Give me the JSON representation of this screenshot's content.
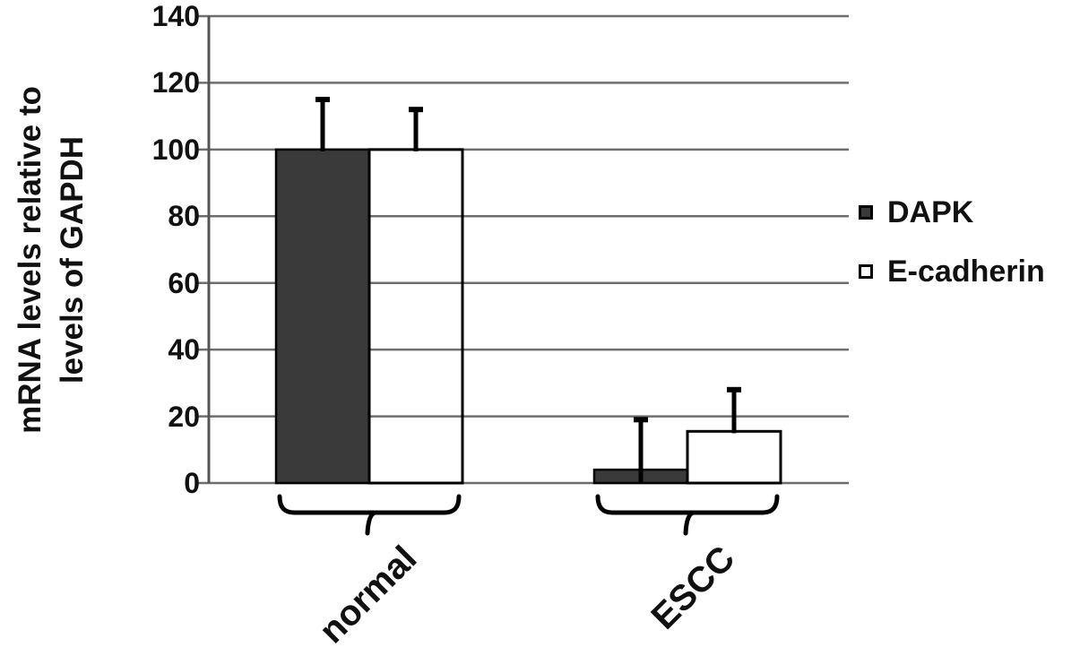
{
  "figure": {
    "background": "#ffffff",
    "y_axis_title_line1": "mRNA levels relative to",
    "y_axis_title_line2": "levels of GAPDH"
  },
  "chart_data": {
    "type": "bar",
    "title": "",
    "xlabel": "",
    "ylabel": "mRNA levels relative to levels of GAPDH",
    "categories": [
      "normal",
      "ESCC"
    ],
    "series": [
      {
        "name": "DAPK",
        "fill": "#3a3a3a",
        "values": [
          100,
          4
        ],
        "error_plus": [
          15,
          15
        ]
      },
      {
        "name": "E-cadherin",
        "fill": "transparent",
        "values": [
          100,
          15.5
        ],
        "error_plus": [
          12,
          12.5
        ]
      }
    ],
    "ylim": [
      0,
      140
    ],
    "yticks": [
      0,
      20,
      40,
      60,
      80,
      100,
      120,
      140
    ],
    "grid": true,
    "error_bars": "upper-only",
    "group_brackets": true,
    "legend_position": "right-middle"
  },
  "colors": {
    "bar_dark": "#3a3a3a",
    "bar_outline": "#000000",
    "gridline": "#6e6e6e",
    "axis": "#555555",
    "error_bar": "#000000",
    "text": "#111111",
    "background": "#ffffff"
  }
}
